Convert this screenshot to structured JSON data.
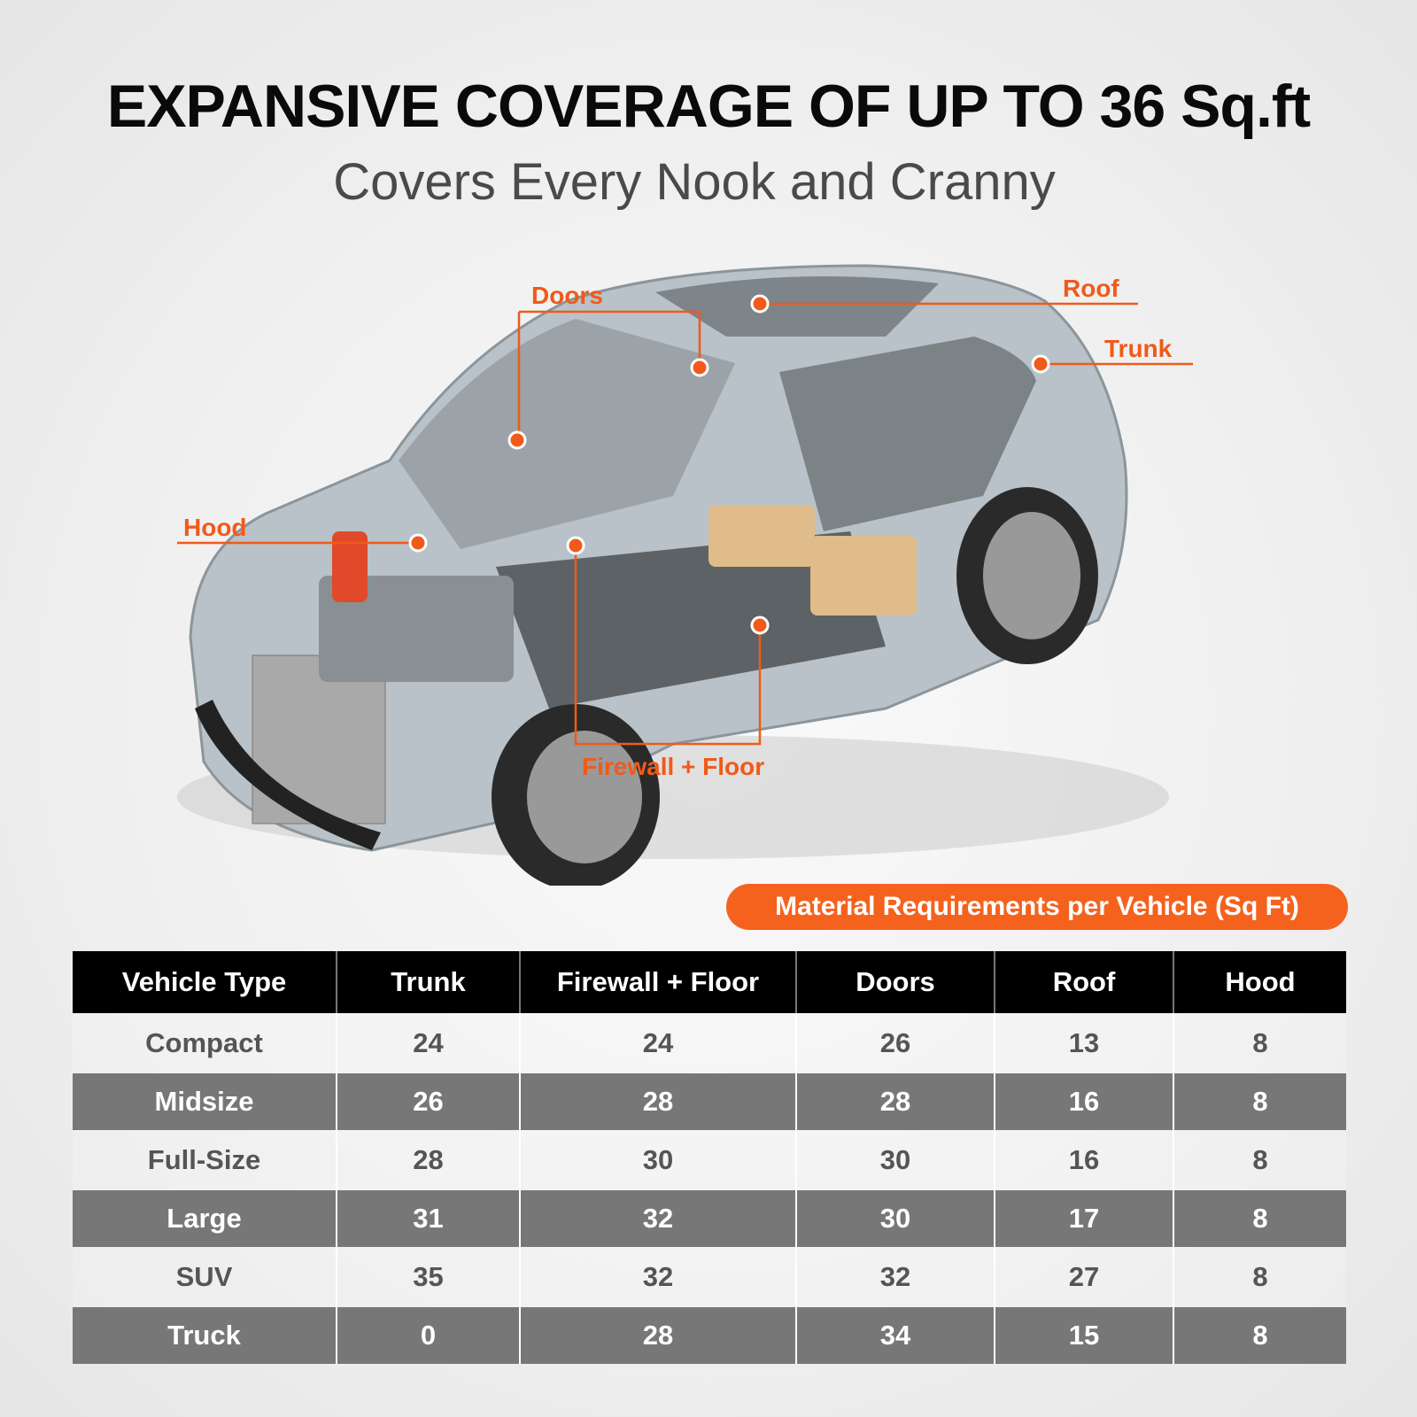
{
  "title": "EXPANSIVE COVERAGE OF UP TO 36 Sq.ft",
  "subtitle": "Covers Every Nook and Cranny",
  "callouts": {
    "doors": "Doors",
    "roof": "Roof",
    "trunk": "Trunk",
    "hood": "Hood",
    "firewall_floor": "Firewall + Floor"
  },
  "accent_color": "#f5621d",
  "table_title": "Material Requirements per Vehicle (Sq Ft)",
  "table": {
    "headers": [
      "Vehicle Type",
      "Trunk",
      "Firewall + Floor",
      "Doors",
      "Roof",
      "Hood"
    ],
    "rows": [
      [
        "Compact",
        "24",
        "24",
        "26",
        "13",
        "8"
      ],
      [
        "Midsize",
        "26",
        "28",
        "28",
        "16",
        "8"
      ],
      [
        "Full-Size",
        "28",
        "30",
        "30",
        "16",
        "8"
      ],
      [
        "Large",
        "31",
        "32",
        "30",
        "17",
        "8"
      ],
      [
        "SUV",
        "35",
        "32",
        "32",
        "27",
        "8"
      ],
      [
        "Truck",
        "0",
        "28",
        "34",
        "15",
        "8"
      ]
    ]
  }
}
